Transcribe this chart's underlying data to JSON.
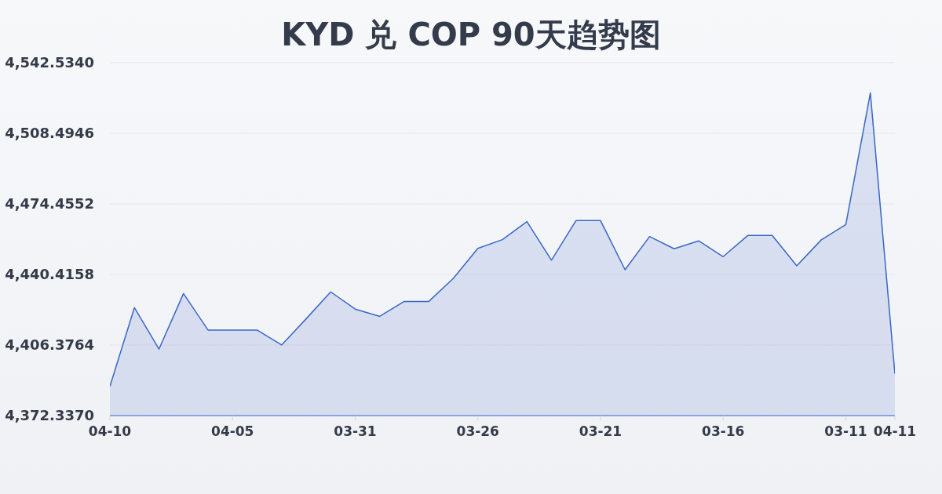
{
  "chart_data": {
    "type": "area",
    "title": "KYD 兑 COP 90天趋势图",
    "categories": [
      "04-10",
      null,
      null,
      null,
      null,
      "04-05",
      null,
      null,
      null,
      null,
      "03-31",
      null,
      null,
      null,
      null,
      "03-26",
      null,
      null,
      null,
      null,
      "03-21",
      null,
      null,
      null,
      null,
      "03-16",
      null,
      null,
      null,
      null,
      "03-11",
      null,
      "04-11"
    ],
    "series": [
      {
        "color": "#3a67c7",
        "values": [
          4386.4,
          4424.4,
          4404.4,
          4431.2,
          4413.6,
          4413.6,
          4413.6,
          4406.4,
          4419.0,
          4432.0,
          4423.7,
          4420.2,
          4427.4,
          4427.4,
          4438.5,
          4453.0,
          4457.2,
          4465.9,
          4447.3,
          4466.4,
          4466.4,
          4442.7,
          4458.7,
          4452.8,
          4456.6,
          4449.0,
          4459.2,
          4459.2,
          4444.6,
          4457.1,
          4464.5,
          4528.0,
          4392.5
        ]
      }
    ],
    "ylim": [
      4372.337,
      4542.534
    ],
    "yticks": [
      {
        "value": 4372.337,
        "label": "4,372.3370"
      },
      {
        "value": 4406.3764,
        "label": "4,406.3764"
      },
      {
        "value": 4440.4158,
        "label": "4,440.4158"
      },
      {
        "value": 4474.4552,
        "label": "4,474.4552"
      },
      {
        "value": 4508.4946,
        "label": "4,508.4946"
      },
      {
        "value": 4542.534,
        "label": "4,542.5340"
      }
    ],
    "grid": "y"
  }
}
